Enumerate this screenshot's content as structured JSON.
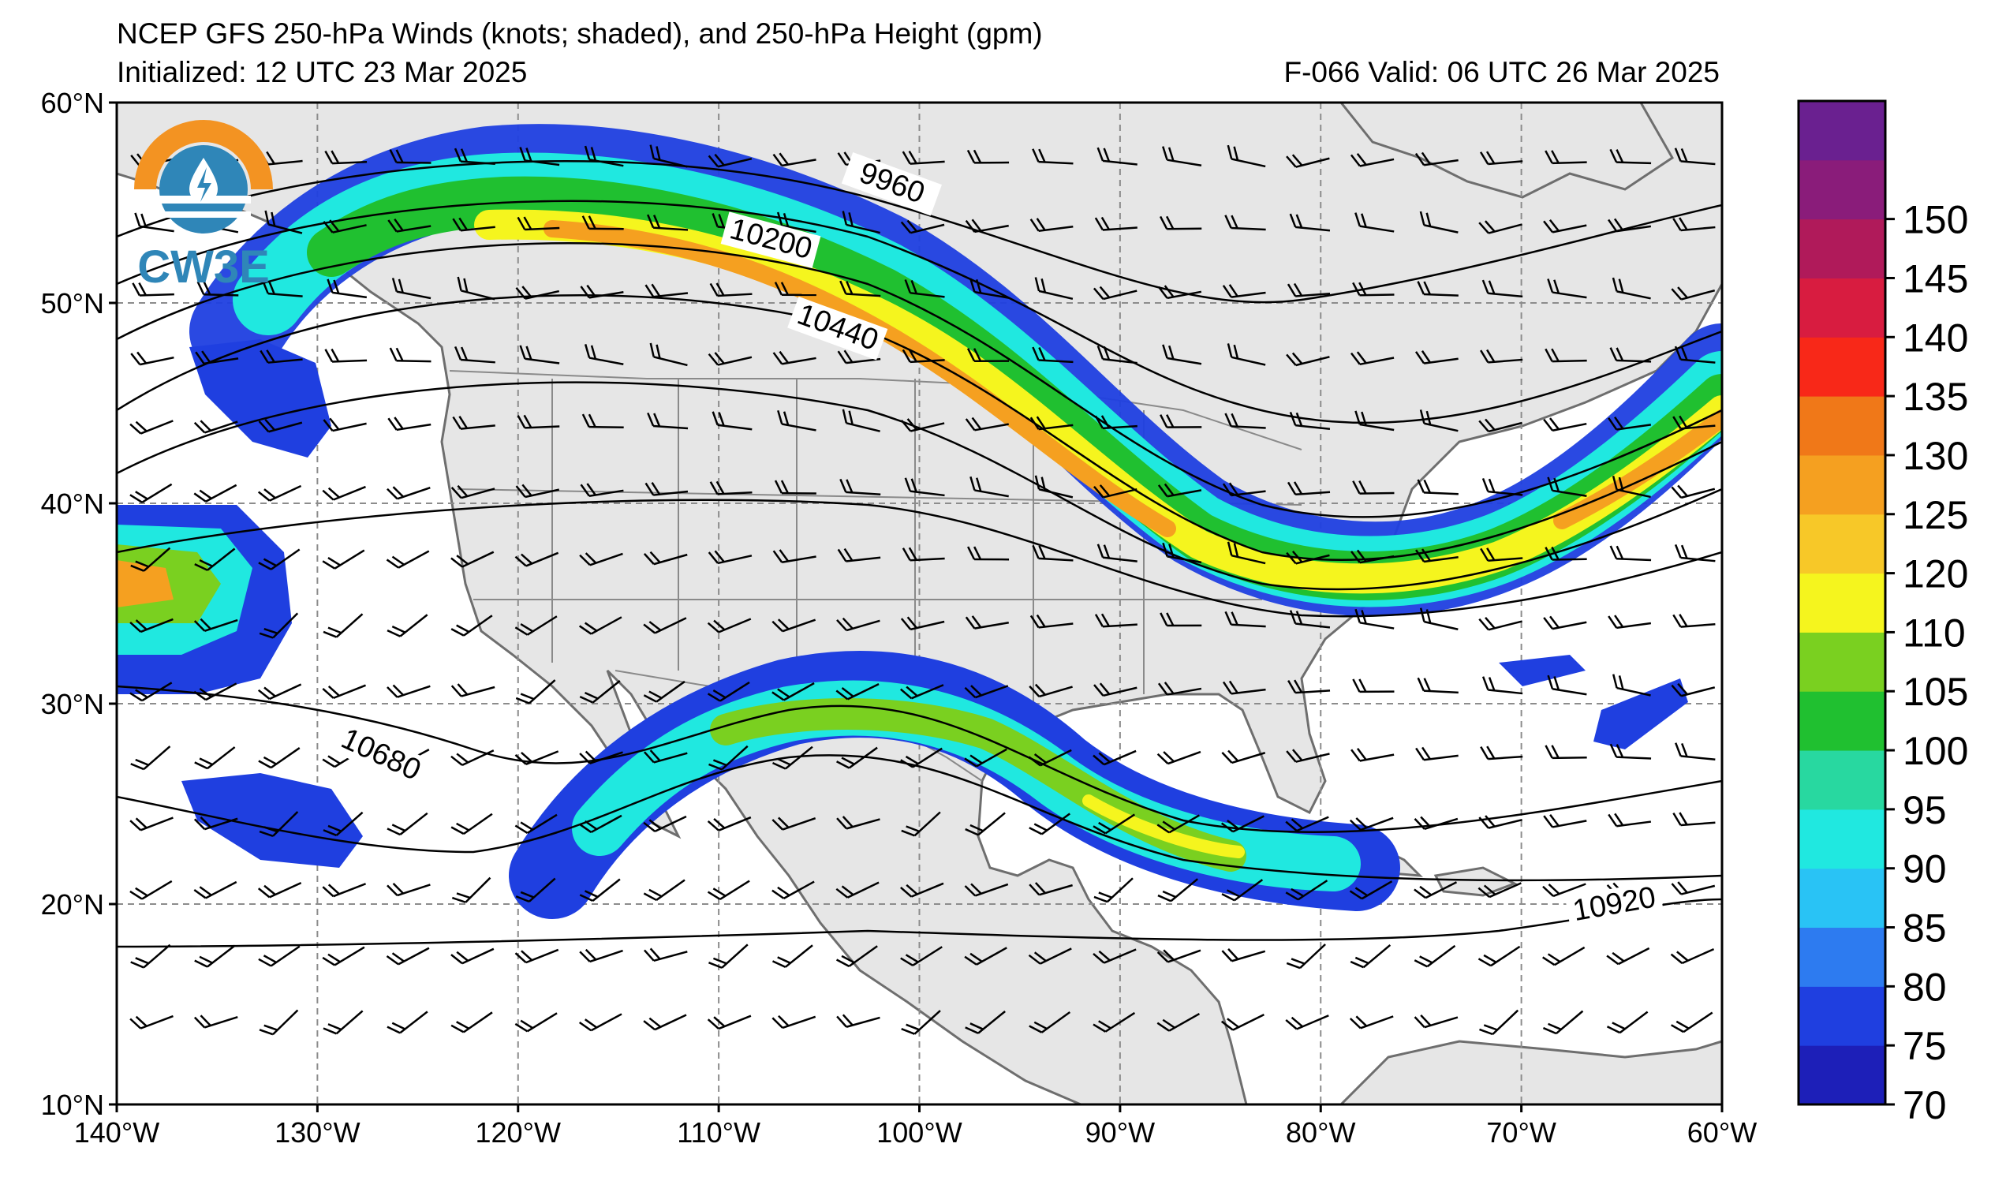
{
  "title_line1": "NCEP GFS 250-hPa Winds (knots; shaded), and 250-hPa Height (gpm)",
  "title_initialized": "Initialized: 12 UTC 23 Mar 2025",
  "title_valid": "F-066  Valid: 06 UTC 26 Mar 2025",
  "logo": {
    "text": "CW3E",
    "colors": {
      "orange": "#f39322",
      "blue": "#2f86b8",
      "dark": "#1f5f86"
    }
  },
  "map": {
    "lon_range": [
      -140,
      -60
    ],
    "lat_range": [
      10,
      60
    ],
    "land_color": "#e6e6e6",
    "ocean_color": "#ffffff",
    "gridlines": true
  },
  "lat_ticks": [
    {
      "lat": 60,
      "label": "60°N"
    },
    {
      "lat": 50,
      "label": "50°N"
    },
    {
      "lat": 40,
      "label": "40°N"
    },
    {
      "lat": 30,
      "label": "30°N"
    },
    {
      "lat": 20,
      "label": "20°N"
    },
    {
      "lat": 10,
      "label": "10°N"
    }
  ],
  "lon_ticks": [
    {
      "lon": -140,
      "label": "140°W"
    },
    {
      "lon": -130,
      "label": "130°W"
    },
    {
      "lon": -120,
      "label": "120°W"
    },
    {
      "lon": -110,
      "label": "110°W"
    },
    {
      "lon": -100,
      "label": "100°W"
    },
    {
      "lon": -90,
      "label": "90°W"
    },
    {
      "lon": -80,
      "label": "80°W"
    },
    {
      "lon": -70,
      "label": "70°W"
    },
    {
      "lon": -60,
      "label": "60°W"
    }
  ],
  "colorbar": {
    "labels": [
      "70",
      "75",
      "80",
      "85",
      "90",
      "95",
      "100",
      "105",
      "110",
      "120",
      "125",
      "130",
      "135",
      "140",
      "145",
      "150"
    ],
    "colors": [
      "#1d1fb8",
      "#1f3fe0",
      "#2d7bf0",
      "#29c3f5",
      "#20e8e0",
      "#28d8a0",
      "#20c030",
      "#7ad020",
      "#f5f51e",
      "#f7c828",
      "#f5a020",
      "#f07818",
      "#f82818",
      "#d81c40",
      "#b01a5a",
      "#8a1c7a",
      "#6a2090"
    ]
  },
  "contour_labels": [
    {
      "text": "9960",
      "lon": -101.5,
      "lat": 55.6,
      "angle": 20
    },
    {
      "text": "10200",
      "lon": -107.5,
      "lat": 52.8,
      "angle": 15
    },
    {
      "text": "10440",
      "lon": -104.2,
      "lat": 48.4,
      "angle": 20
    },
    {
      "text": "10680",
      "lon": -127.0,
      "lat": 27.1,
      "angle": 25
    },
    {
      "text": "10920",
      "lon": -65.3,
      "lat": 19.6,
      "angle": -10
    }
  ]
}
